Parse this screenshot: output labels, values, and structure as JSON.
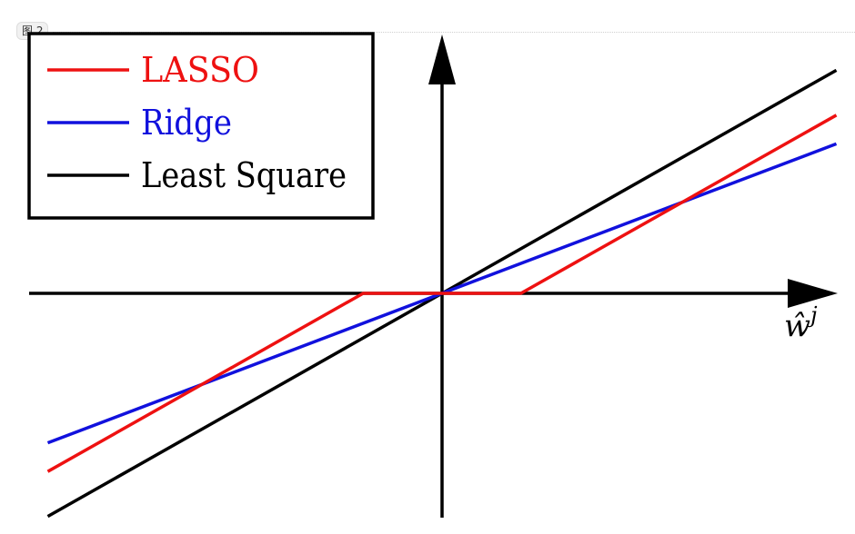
{
  "figure_badge": "图 2",
  "chart_data": {
    "type": "line",
    "title": "",
    "xlabel": "ŵ",
    "xlabel_superscript": "j",
    "ylabel": "",
    "grid": false,
    "legend_position": "top-left",
    "xlim": [
      -5.3,
      5
    ],
    "ylim": [
      -2.9,
      3.35
    ],
    "series": [
      {
        "name": "LASSO",
        "color": "#ee1111",
        "x": [
          -5,
          -1,
          1,
          5
        ],
        "y": [
          -2.3,
          0,
          0,
          2.3
        ]
      },
      {
        "name": "Ridge",
        "color": "#1111dd",
        "x": [
          -5,
          5
        ],
        "y": [
          -1.93,
          1.93
        ]
      },
      {
        "name": "Least Square",
        "color": "#000000",
        "x": [
          -5,
          5
        ],
        "y": [
          -2.88,
          2.88
        ]
      }
    ]
  }
}
